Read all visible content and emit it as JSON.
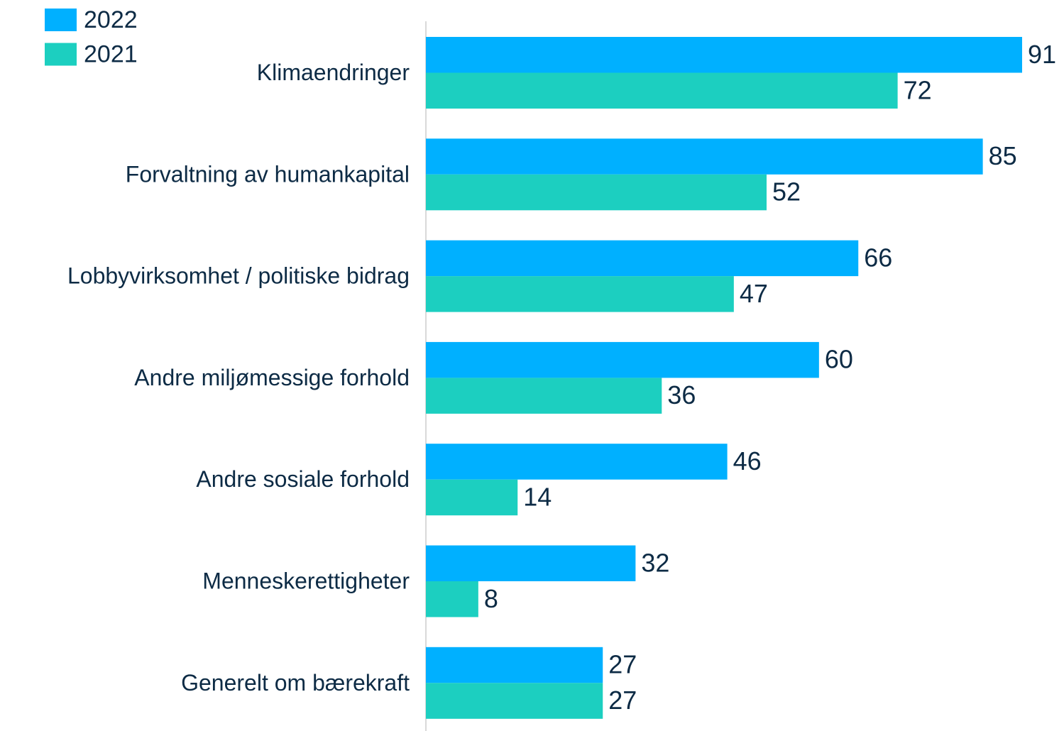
{
  "chart_data": {
    "type": "bar",
    "orientation": "horizontal",
    "categories": [
      "Klimaendringer",
      "Forvaltning av humankapital",
      "Lobbyvirksomhet / politiske bidrag",
      "Andre miljømessige forhold",
      "Andre sosiale forhold",
      "Menneskerettigheter",
      "Generelt om bærekraft"
    ],
    "series": [
      {
        "name": "2022",
        "color": "#00b0ff",
        "values": [
          91,
          85,
          66,
          60,
          46,
          32,
          27
        ]
      },
      {
        "name": "2021",
        "color": "#1ccfc0",
        "values": [
          72,
          52,
          47,
          36,
          14,
          8,
          27
        ]
      }
    ],
    "xlim": [
      0,
      91
    ],
    "legend": "top-left",
    "data_labels": true
  }
}
